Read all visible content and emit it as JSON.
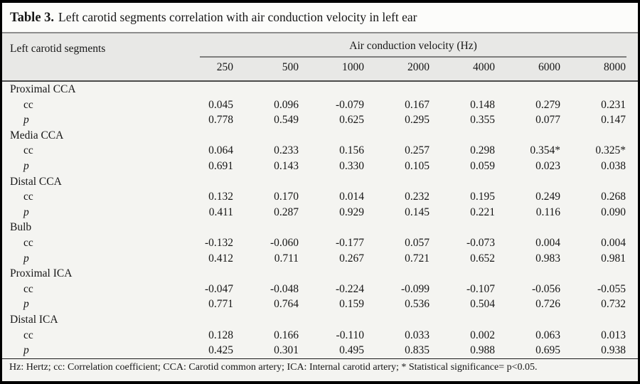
{
  "title": {
    "label": "Table 3.",
    "text": "Left carotid segments correlation with air conduction velocity in left ear"
  },
  "table": {
    "corner_header": "Left carotid segments",
    "group_header": "Air conduction velocity (Hz)",
    "columns": [
      "250",
      "500",
      "1000",
      "2000",
      "4000",
      "6000",
      "8000"
    ],
    "rows": [
      {
        "type": "segment",
        "label": "Proximal CCA"
      },
      {
        "type": "cc",
        "label": "cc",
        "values": [
          "0.045",
          "0.096",
          "-0.079",
          "0.167",
          "0.148",
          "0.279",
          "0.231"
        ]
      },
      {
        "type": "p",
        "label": "p",
        "values": [
          "0.778",
          "0.549",
          "0.625",
          "0.295",
          "0.355",
          "0.077",
          "0.147"
        ]
      },
      {
        "type": "segment",
        "label": "Media CCA"
      },
      {
        "type": "cc",
        "label": "cc",
        "values": [
          "0.064",
          "0.233",
          "0.156",
          "0.257",
          "0.298",
          "0.354*",
          "0.325*"
        ]
      },
      {
        "type": "p",
        "label": "p",
        "values": [
          "0.691",
          "0.143",
          "0.330",
          "0.105",
          "0.059",
          "0.023",
          "0.038"
        ]
      },
      {
        "type": "segment",
        "label": "Distal CCA"
      },
      {
        "type": "cc",
        "label": "cc",
        "values": [
          "0.132",
          "0.170",
          "0.014",
          "0.232",
          "0.195",
          "0.249",
          "0.268"
        ]
      },
      {
        "type": "p",
        "label": "p",
        "values": [
          "0.411",
          "0.287",
          "0.929",
          "0.145",
          "0.221",
          "0.116",
          "0.090"
        ]
      },
      {
        "type": "segment",
        "label": "Bulb"
      },
      {
        "type": "cc",
        "label": "cc",
        "values": [
          "-0.132",
          "-0.060",
          "-0.177",
          "0.057",
          "-0.073",
          "0.004",
          "0.004"
        ]
      },
      {
        "type": "p",
        "label": "p",
        "values": [
          "0.412",
          "0.711",
          "0.267",
          "0.721",
          "0.652",
          "0.983",
          "0.981"
        ]
      },
      {
        "type": "segment",
        "label": "Proximal ICA"
      },
      {
        "type": "cc",
        "label": "cc",
        "values": [
          "-0.047",
          "-0.048",
          "-0.224",
          "-0.099",
          "-0.107",
          "-0.056",
          "-0.055"
        ]
      },
      {
        "type": "p",
        "label": "p",
        "values": [
          "0.771",
          "0.764",
          "0.159",
          "0.536",
          "0.504",
          "0.726",
          "0.732"
        ]
      },
      {
        "type": "segment",
        "label": "Distal ICA"
      },
      {
        "type": "cc",
        "label": "cc",
        "values": [
          "0.128",
          "0.166",
          "-0.110",
          "0.033",
          "0.002",
          "0.063",
          "0.013"
        ]
      },
      {
        "type": "p",
        "label": "p",
        "values": [
          "0.425",
          "0.301",
          "0.495",
          "0.835",
          "0.988",
          "0.695",
          "0.938"
        ]
      }
    ]
  },
  "footnote": "Hz: Hertz; cc: Correlation coefficient; CCA: Carotid common artery; ICA: Internal carotid artery; * Statistical significance= p<0.05.",
  "colors": {
    "frame_border": "#000000",
    "title_bg": "#fcfcfa",
    "header_bg": "#e8e8e6",
    "body_bg": "#f4f4f1",
    "title_rule": "#8d8d8d",
    "group_underline": "#7d7d7d",
    "header_rule": "#4b4b4b",
    "footnote_rule": "#1c1c1c",
    "text": "#161616"
  }
}
